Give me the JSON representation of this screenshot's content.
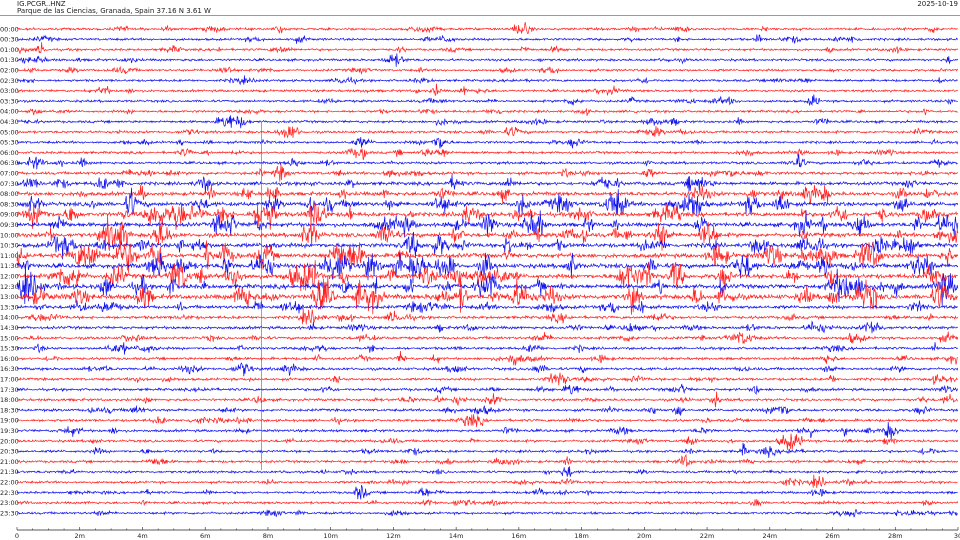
{
  "header": {
    "station": "IG.PCGR..HNZ",
    "location": "Parque de las Ciencias, Granada, Spain  37.16 N 3.61 W",
    "date": "2025-10-19"
  },
  "chart_data": {
    "type": "line",
    "subtype": "helicorder",
    "title": "IG.PCGR..HNZ",
    "xlabel": "",
    "xlim": [
      0,
      30
    ],
    "x_unit": "minutes",
    "x_ticks": [
      "0",
      "2m",
      "4m",
      "6m",
      "8m",
      "10m",
      "12m",
      "14m",
      "16m",
      "18m",
      "20m",
      "22m",
      "24m",
      "26m",
      "28m",
      "30"
    ],
    "row_labels": [
      "00:00",
      "00:30",
      "01:00",
      "01:30",
      "02:00",
      "02:30",
      "03:00",
      "03:30",
      "04:00",
      "04:30",
      "05:00",
      "05:30",
      "06:00",
      "06:30",
      "07:00",
      "07:30",
      "08:00",
      "08:30",
      "09:00",
      "09:30",
      "10:00",
      "10:30",
      "11:00",
      "11:30",
      "12:00",
      "12:30",
      "13:00",
      "13:30",
      "14:00",
      "14:30",
      "15:00",
      "15:30",
      "16:00",
      "16:30",
      "17:00",
      "17:30",
      "18:00",
      "18:30",
      "19:00",
      "19:30",
      "20:00",
      "20:30",
      "21:00",
      "21:30",
      "22:00",
      "22:30",
      "23:00",
      "23:30"
    ],
    "relative_activity": [
      1,
      1,
      1,
      1,
      1,
      1,
      1,
      1,
      1,
      1.1,
      1.1,
      1.1,
      1.1,
      1.2,
      1.5,
      2,
      2.5,
      3,
      3,
      3,
      3,
      3,
      3.5,
      3.5,
      3.5,
      3.5,
      4,
      2,
      1.5,
      1.5,
      1.3,
      1.2,
      1.2,
      1.3,
      1.2,
      1.2,
      1.2,
      1.2,
      1.2,
      1.2,
      1.1,
      1.1,
      1.1,
      1,
      1,
      1,
      1,
      1
    ],
    "series_colors": [
      "#ff2020",
      "#1010ee"
    ]
  }
}
